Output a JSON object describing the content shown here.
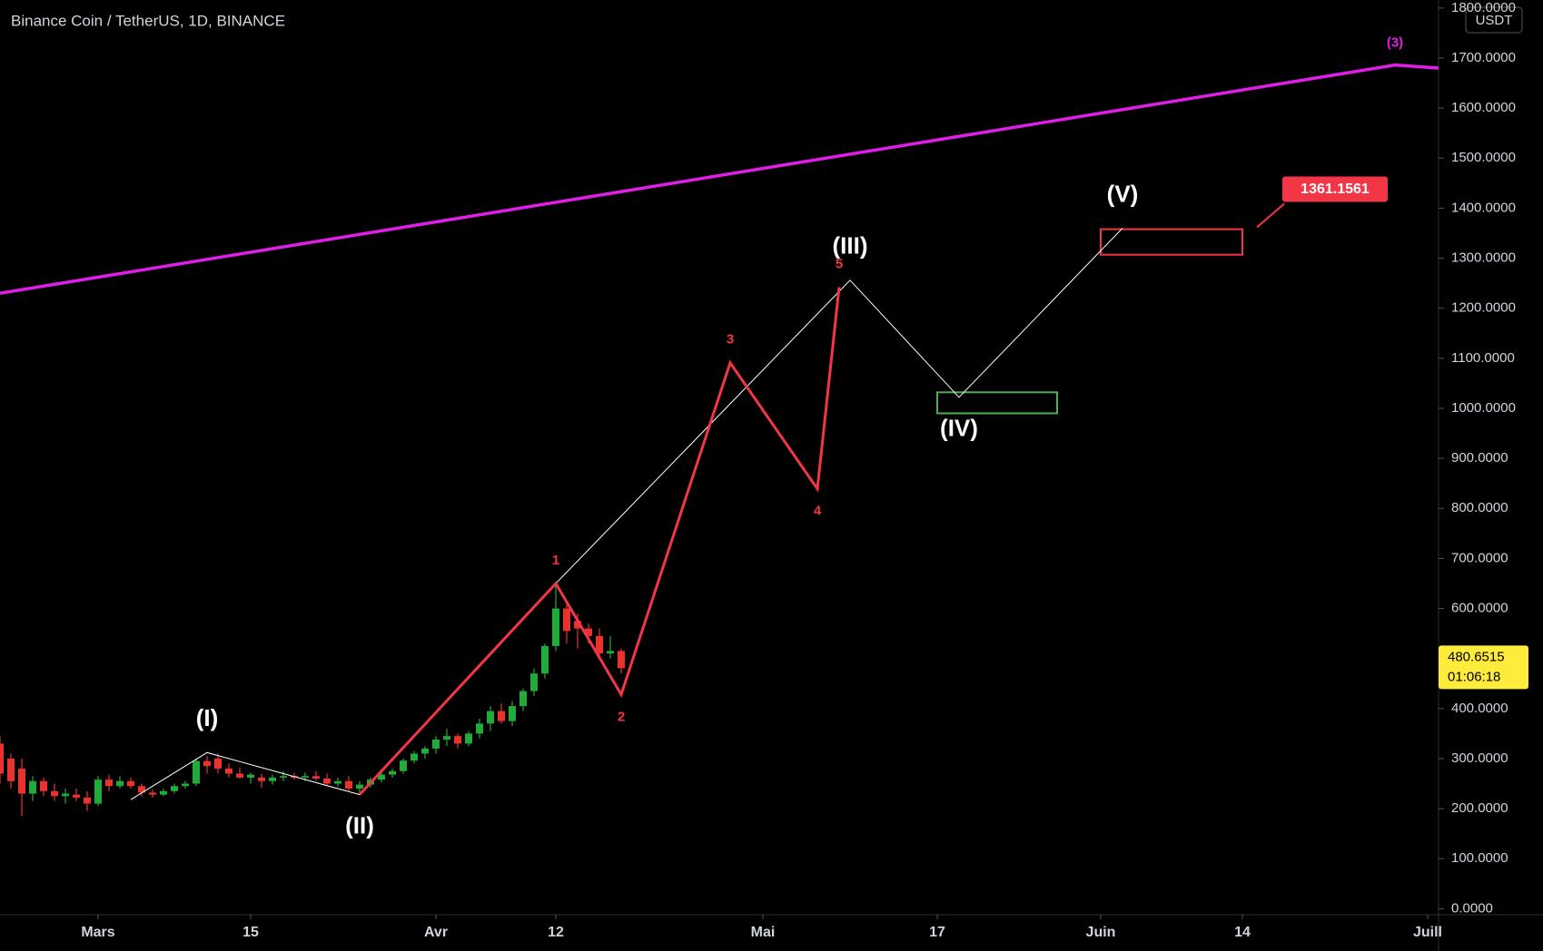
{
  "chart_data": {
    "type": "candlestick",
    "title": "Binance Coin / TetherUS, 1D, BINANCE",
    "currency": "USDT",
    "xlim": [
      "02-20",
      "07-02"
    ],
    "xticks": [
      {
        "value": "03-01",
        "label": "Mars"
      },
      {
        "value": "03-15",
        "label": "15"
      },
      {
        "value": "04-01",
        "label": "Avr"
      },
      {
        "value": "04-12",
        "label": "12"
      },
      {
        "value": "05-01",
        "label": "Mai"
      },
      {
        "value": "05-17",
        "label": "17"
      },
      {
        "value": "06-01",
        "label": "Juin"
      },
      {
        "value": "06-14",
        "label": "14"
      },
      {
        "value": "07-01",
        "label": "Juill"
      }
    ],
    "ylim": [
      -12,
      1816
    ],
    "yticks": [
      {
        "value": 0,
        "label": "0.0000"
      },
      {
        "value": 100,
        "label": "100.0000"
      },
      {
        "value": 200,
        "label": "200.0000"
      },
      {
        "value": 300,
        "label": "300.0000"
      },
      {
        "value": 400,
        "label": "400.0000"
      },
      {
        "value": 600,
        "label": "600.0000"
      },
      {
        "value": 700,
        "label": "700.0000"
      },
      {
        "value": 800,
        "label": "800.0000"
      },
      {
        "value": 900,
        "label": "900.0000"
      },
      {
        "value": 1000,
        "label": "1000.0000"
      },
      {
        "value": 1100,
        "label": "1100.0000"
      },
      {
        "value": 1200,
        "label": "1200.0000"
      },
      {
        "value": 1300,
        "label": "1300.0000"
      },
      {
        "value": 1400,
        "label": "1400.0000"
      },
      {
        "value": 1500,
        "label": "1500.0000"
      },
      {
        "value": 1600,
        "label": "1600.0000"
      },
      {
        "value": 1700,
        "label": "1700.0000"
      },
      {
        "value": 1800,
        "label": "1800.0000"
      }
    ],
    "up_color": "#22ab3a",
    "down_color": "#e8332f",
    "candles": {
      "x": [
        "02-20",
        "02-21",
        "02-22",
        "02-23",
        "02-24",
        "02-25",
        "02-26",
        "02-27",
        "02-28",
        "03-01",
        "03-02",
        "03-03",
        "03-04",
        "03-05",
        "03-06",
        "03-07",
        "03-08",
        "03-09",
        "03-10",
        "03-11",
        "03-12",
        "03-13",
        "03-14",
        "03-15",
        "03-16",
        "03-17",
        "03-18",
        "03-19",
        "03-20",
        "03-21",
        "03-22",
        "03-23",
        "03-24",
        "03-25",
        "03-26",
        "03-27",
        "03-28",
        "03-29",
        "03-30",
        "03-31",
        "04-01",
        "04-02",
        "04-03",
        "04-04",
        "04-05",
        "04-06",
        "04-07",
        "04-08",
        "04-09",
        "04-10",
        "04-11",
        "04-12",
        "04-13",
        "04-14",
        "04-15",
        "04-16",
        "04-17",
        "04-18"
      ],
      "open": [
        330,
        300,
        280,
        230,
        255,
        235,
        225,
        228,
        222,
        210,
        258,
        245,
        255,
        245,
        232,
        228,
        235,
        245,
        250,
        295,
        300,
        280,
        270,
        262,
        262,
        255,
        262,
        265,
        262,
        265,
        260,
        250,
        255,
        240,
        248,
        258,
        268,
        275,
        296,
        310,
        320,
        338,
        345,
        330,
        350,
        370,
        395,
        375,
        405,
        435,
        470,
        525,
        600,
        575,
        560,
        545,
        510,
        515
      ],
      "high": [
        345,
        310,
        300,
        265,
        262,
        250,
        240,
        240,
        235,
        265,
        268,
        265,
        262,
        250,
        238,
        240,
        250,
        255,
        300,
        305,
        310,
        290,
        282,
        272,
        270,
        268,
        275,
        272,
        272,
        275,
        270,
        262,
        265,
        255,
        262,
        272,
        280,
        300,
        315,
        325,
        345,
        360,
        350,
        355,
        380,
        405,
        410,
        415,
        440,
        480,
        530,
        650,
        610,
        590,
        570,
        560,
        545,
        520
      ],
      "low": [
        250,
        240,
        185,
        215,
        225,
        215,
        210,
        215,
        195,
        205,
        235,
        240,
        240,
        225,
        222,
        225,
        230,
        240,
        245,
        270,
        270,
        262,
        260,
        250,
        242,
        248,
        255,
        258,
        255,
        256,
        245,
        244,
        235,
        228,
        242,
        252,
        262,
        270,
        290,
        300,
        310,
        325,
        320,
        325,
        340,
        355,
        370,
        365,
        395,
        425,
        460,
        515,
        530,
        520,
        530,
        500,
        500,
        470
      ],
      "close": [
        270,
        255,
        230,
        255,
        235,
        225,
        230,
        222,
        210,
        258,
        245,
        255,
        245,
        232,
        228,
        235,
        245,
        250,
        295,
        285,
        280,
        270,
        262,
        268,
        255,
        262,
        265,
        262,
        265,
        260,
        250,
        255,
        240,
        248,
        258,
        268,
        275,
        296,
        310,
        320,
        338,
        345,
        330,
        350,
        370,
        395,
        375,
        405,
        435,
        470,
        525,
        600,
        555,
        560,
        545,
        510,
        515,
        480.6515
      ]
    },
    "last_price": 480.6515,
    "countdown": "01:06:18",
    "waves": [
      {
        "color": "#ffffff",
        "points": [
          {
            "x": "03-04",
            "value": 218,
            "label": null
          },
          {
            "x": "03-11",
            "value": 312,
            "label": "(I)"
          },
          {
            "x": "03-25",
            "value": 228,
            "label": "(II)"
          },
          {
            "x": "04-12",
            "value": 650,
            "label": null
          },
          {
            "x": "05-09",
            "value": 1256,
            "label": "(III)"
          },
          {
            "x": "05-19",
            "value": 1022,
            "label": "(IV)"
          },
          {
            "x": "06-03",
            "value": 1360,
            "label": "(V)"
          }
        ]
      },
      {
        "color": "#f23645",
        "points": [
          {
            "x": "03-25",
            "value": 228,
            "label": null
          },
          {
            "x": "04-12",
            "value": 650,
            "label": "1"
          },
          {
            "x": "04-18",
            "value": 428,
            "label": "2"
          },
          {
            "x": "04-28",
            "value": 1091,
            "label": "3"
          },
          {
            "x": "05-06",
            "value": 839,
            "label": "4"
          },
          {
            "x": "05-08",
            "value": 1242,
            "label": "5"
          }
        ]
      },
      {
        "color": "#e01ee8",
        "points": [
          {
            "x": "02-20",
            "value": 1230,
            "label": null
          },
          {
            "x": "06-28",
            "value": 1686,
            "label": "(3)"
          },
          {
            "x": "07-02",
            "value": 1680,
            "label": null
          }
        ]
      }
    ],
    "zones": [
      {
        "x": [
          "05-17",
          "05-28"
        ],
        "values": [
          990,
          1032
        ],
        "color": "#4caf50"
      },
      {
        "x": [
          "06-01",
          "06-14"
        ],
        "values": [
          1307,
          1358
        ],
        "color": "#f23645"
      }
    ],
    "target": 1361.1561
  }
}
